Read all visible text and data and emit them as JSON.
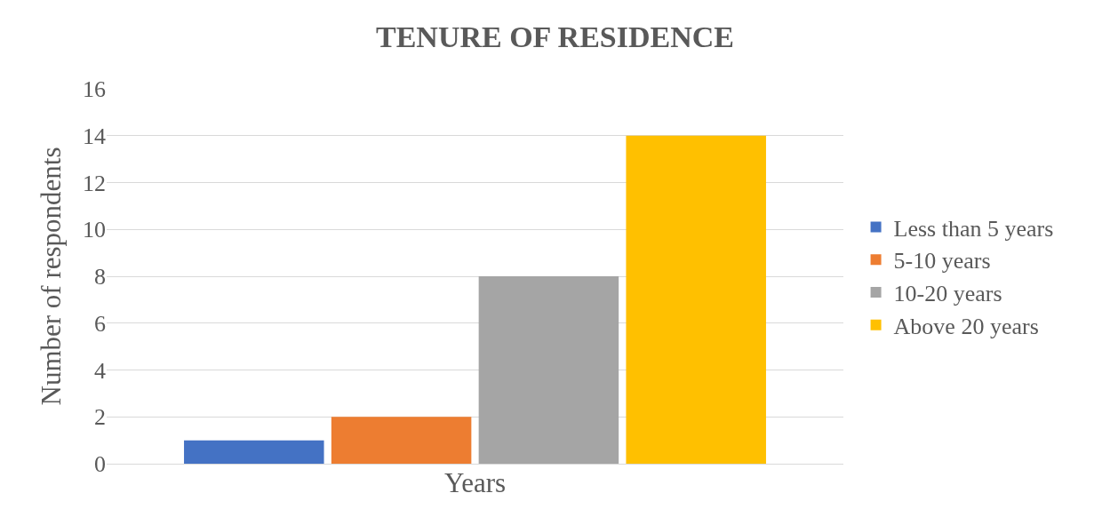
{
  "chart_data": {
    "type": "bar",
    "title": "TENURE OF RESIDENCE",
    "xlabel": "Years",
    "ylabel": "Number of respondents",
    "categories": [
      null
    ],
    "series": [
      {
        "name": "Less than 5 years",
        "color": "#4472c4",
        "values": [
          1
        ]
      },
      {
        "name": "5-10 years",
        "color": "#ed7d31",
        "values": [
          2
        ]
      },
      {
        "name": "10-20 years",
        "color": "#a5a5a5",
        "values": [
          8
        ]
      },
      {
        "name": "Above 20 years",
        "color": "#ffc000",
        "values": [
          14
        ]
      }
    ],
    "ylim": [
      0,
      16
    ],
    "yticks": [
      0,
      2,
      4,
      6,
      8,
      10,
      12,
      14,
      16
    ],
    "grid": "y",
    "legend": "right"
  }
}
